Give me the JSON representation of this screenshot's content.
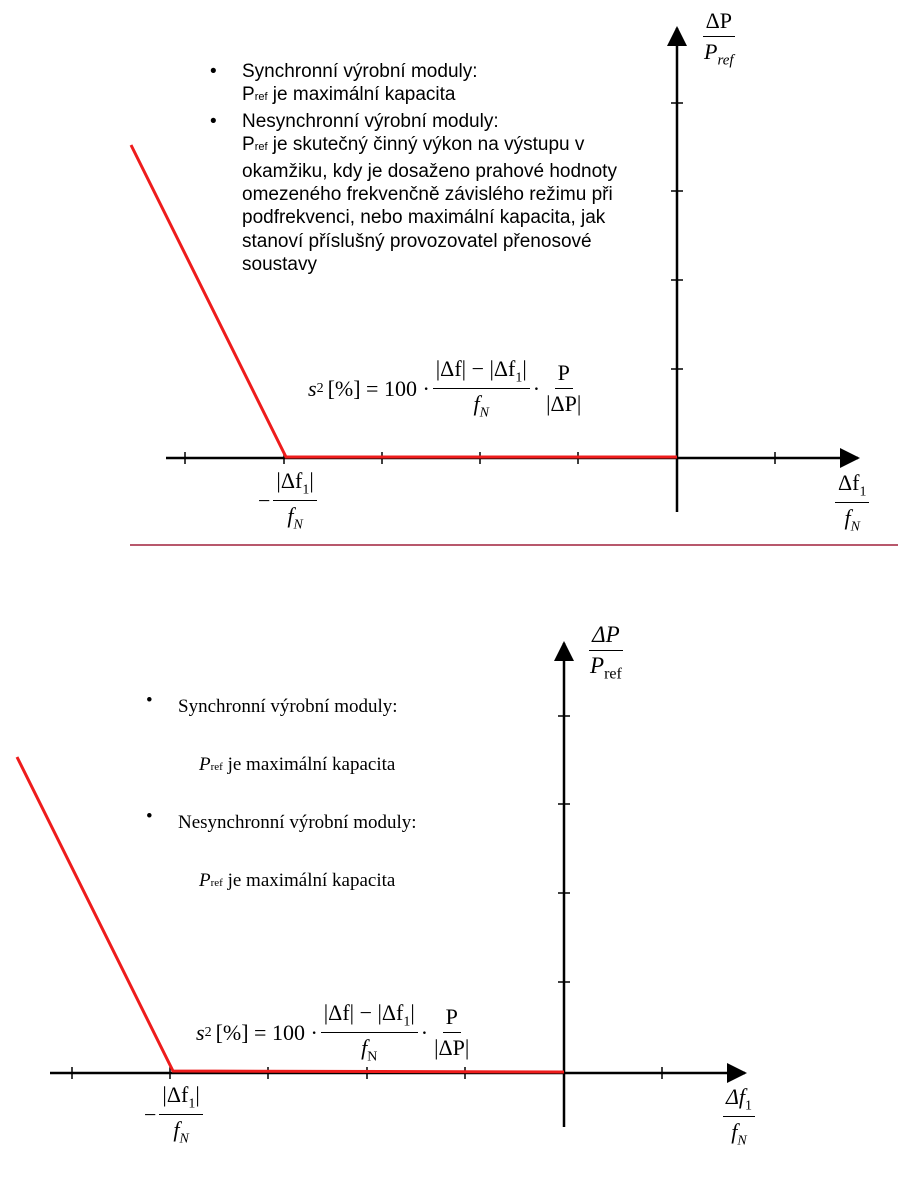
{
  "top_panel": {
    "bullets": [
      {
        "title": "Synchronní výrobní moduly:",
        "p_label": "P",
        "p_sub": "ref",
        "detail": " je maximální kapacita"
      },
      {
        "title": "Nesynchronní výrobní moduly:",
        "p_label": "P",
        "p_sub": "ref",
        "detail": " je skutečný činný výkon na výstupu v okamžiku, kdy je dosaženo prahové hodnoty omezeného frekvenčně závislého režimu při podfrekvenci, nebo maximální kapacita, jak stanoví příslušný provozovatel přenosové soustavy"
      }
    ],
    "formula": {
      "lhs": "s",
      "lhs_sub": "2",
      "lhs_rest": "[%] = 100 ·",
      "num1": "|Δf| − |Δf",
      "num1_sub": "1",
      "num1_end": "|",
      "den1": "f",
      "den1_sub": "N",
      "dot": "·",
      "num2": "P",
      "den2": "|ΔP|"
    },
    "y_label": {
      "num": "ΔP",
      "den": "P",
      "den_sub": "ref"
    },
    "x_label": {
      "num": "Δf",
      "num_sub": "1",
      "den": "f",
      "den_sub": "N"
    },
    "knee_label": {
      "minus": "−",
      "num": "|Δf",
      "num_sub": "1",
      "num_end": "|",
      "den": "f",
      "den_sub": "N"
    }
  },
  "bottom_panel": {
    "bullets": [
      {
        "title": "Synchronní výrobní moduly:",
        "p_label": "P",
        "p_sub": "ref",
        "detail": " je maximální kapacita"
      },
      {
        "title": "Nesynchronní výrobní moduly:",
        "p_label": "P",
        "p_sub": "ref",
        "detail": " je maximální kapacita"
      }
    ],
    "formula": {
      "lhs": "s",
      "lhs_sub": "2",
      "lhs_rest": "[%] = 100 ·",
      "num1": "|Δf| − |Δf",
      "num1_sub": "1",
      "num1_end": "|",
      "den1": "f",
      "den1_sub": "N",
      "dot": "·",
      "num2": "P",
      "den2": "|ΔP|"
    },
    "y_label": {
      "num": "ΔP",
      "den": "P",
      "den_sub": "ref"
    },
    "x_label": {
      "num": "Δf",
      "num_sub": "1",
      "den": "f",
      "den_sub": "N"
    },
    "knee_label": {
      "minus": "−",
      "num": "|Δf",
      "num_sub": "1",
      "num_end": "|",
      "den": "f",
      "den_sub": "N"
    }
  },
  "colors": {
    "curve": "#ee1c1c",
    "axis": "#000000",
    "separator": "#a0203c"
  }
}
